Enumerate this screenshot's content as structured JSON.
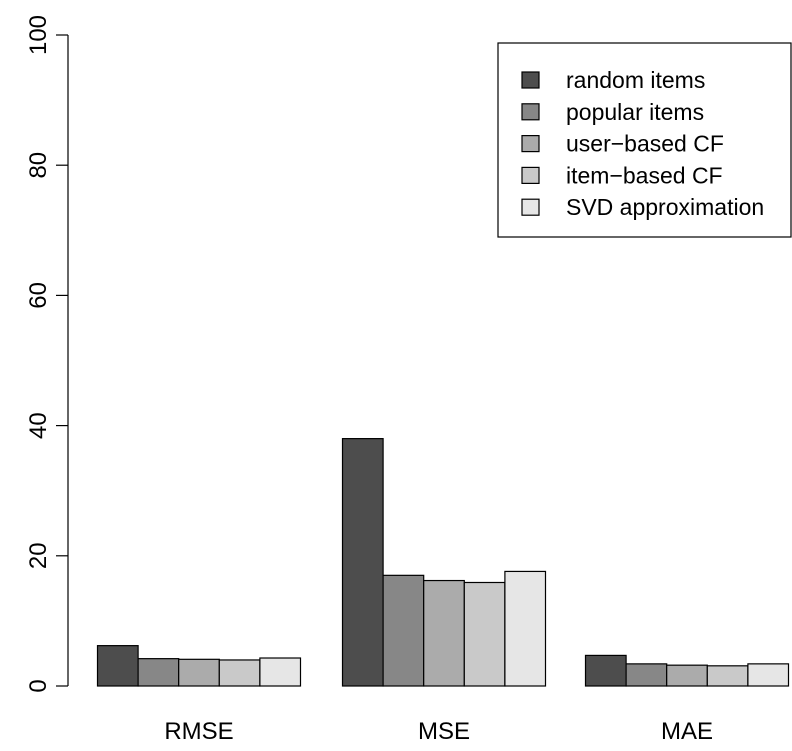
{
  "chart_data": {
    "type": "bar",
    "categories": [
      "RMSE",
      "MSE",
      "MAE"
    ],
    "series": [
      {
        "name": "random items",
        "values": [
          6.2,
          38.0,
          4.7
        ],
        "color": "#4d4d4d"
      },
      {
        "name": "popular items",
        "values": [
          4.2,
          17.0,
          3.4
        ],
        "color": "#878787"
      },
      {
        "name": "user−based CF",
        "values": [
          4.1,
          16.2,
          3.2
        ],
        "color": "#ababab"
      },
      {
        "name": "item−based CF",
        "values": [
          4.0,
          15.9,
          3.1
        ],
        "color": "#c9c9c9"
      },
      {
        "name": "SVD approximation",
        "values": [
          4.3,
          17.6,
          3.4
        ],
        "color": "#e6e6e6"
      }
    ],
    "title": "",
    "xlabel": "",
    "ylabel": "",
    "ylim": [
      0,
      100
    ],
    "yticks": [
      "0",
      "20",
      "40",
      "60",
      "80",
      "100"
    ],
    "legend_position": "top-right",
    "grid": false
  }
}
